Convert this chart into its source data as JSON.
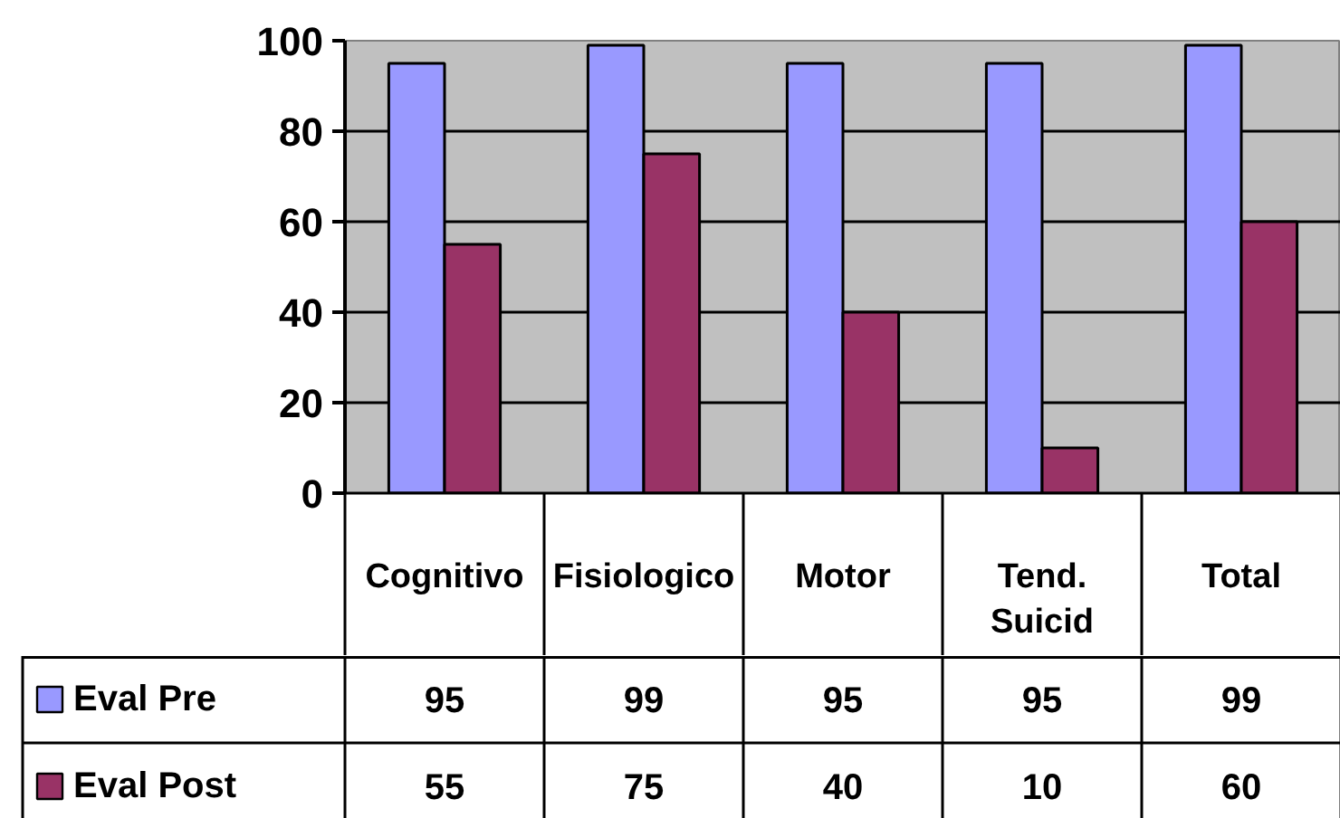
{
  "chart_data": {
    "type": "bar",
    "categories": [
      "Cognitivo",
      "Fisiologico",
      "Motor",
      "Tend. Suicid",
      "Total"
    ],
    "series": [
      {
        "name": "Eval Pre",
        "color": "#9999ff",
        "values": [
          95,
          99,
          95,
          95,
          99
        ]
      },
      {
        "name": "Eval Post",
        "color": "#993366",
        "values": [
          55,
          75,
          40,
          10,
          60
        ]
      }
    ],
    "ylim": [
      0,
      100
    ],
    "yticks": [
      0,
      20,
      40,
      60,
      80,
      100
    ],
    "grid": "y",
    "legend": "bottom",
    "data_labels": true
  }
}
